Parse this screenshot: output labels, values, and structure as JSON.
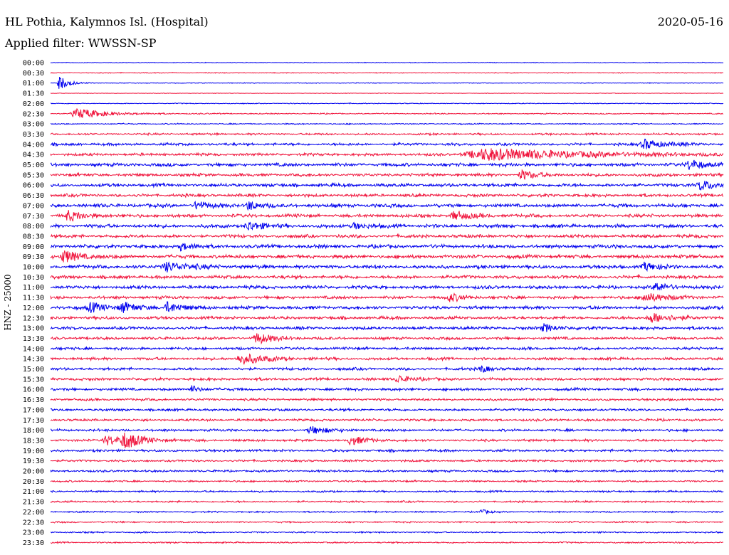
{
  "station_title": "HL Pothia, Kalymnos Isl. (Hospital)",
  "date": "2020-05-16",
  "filter_label": "Applied filter: WWSSN-SP",
  "chart_data": {
    "type": "line",
    "title": "HL Pothia, Kalymnos Isl. (Hospital)",
    "ylabel": "HNZ - 25000",
    "xlabel": "",
    "trace_colors": [
      "#0000ee",
      "#f0143c"
    ],
    "row_labels": [
      "00:00",
      "00:30",
      "01:00",
      "01:30",
      "02:00",
      "02:30",
      "03:00",
      "03:30",
      "04:00",
      "04:30",
      "05:00",
      "05:30",
      "06:00",
      "06:30",
      "07:00",
      "07:30",
      "08:00",
      "08:30",
      "09:00",
      "09:30",
      "10:00",
      "10:30",
      "11:00",
      "11:30",
      "12:00",
      "12:30",
      "13:00",
      "13:30",
      "14:00",
      "14:30",
      "15:00",
      "15:30",
      "16:00",
      "16:30",
      "17:00",
      "17:30",
      "18:00",
      "18:30",
      "19:00",
      "19:30",
      "20:00",
      "20:30",
      "21:00",
      "21:30",
      "22:00",
      "22:30",
      "23:00",
      "23:30"
    ],
    "noise_level": [
      0.12,
      0.15,
      0.12,
      0.08,
      0.15,
      0.2,
      0.2,
      0.35,
      0.45,
      0.45,
      0.55,
      0.5,
      0.55,
      0.5,
      0.6,
      0.55,
      0.6,
      0.55,
      0.6,
      0.6,
      0.6,
      0.55,
      0.55,
      0.5,
      0.55,
      0.5,
      0.5,
      0.45,
      0.45,
      0.45,
      0.45,
      0.45,
      0.45,
      0.4,
      0.4,
      0.4,
      0.4,
      0.4,
      0.4,
      0.35,
      0.35,
      0.3,
      0.3,
      0.3,
      0.25,
      0.25,
      0.25,
      0.25
    ],
    "events": [
      {
        "row": 2,
        "time_min": 0.4,
        "amp": 3.2,
        "dur_min": 0.8
      },
      {
        "row": 5,
        "time_min": 1.2,
        "amp": 2.2,
        "dur_min": 2.5
      },
      {
        "row": 8,
        "time_min": 26.5,
        "amp": 2.0,
        "dur_min": 1.8
      },
      {
        "row": 9,
        "time_min": 19.5,
        "amp": 2.4,
        "dur_min": 9.0
      },
      {
        "row": 10,
        "time_min": 28.5,
        "amp": 2.0,
        "dur_min": 1.5
      },
      {
        "row": 11,
        "time_min": 21.0,
        "amp": 2.0,
        "dur_min": 1.2
      },
      {
        "row": 12,
        "time_min": 29.0,
        "amp": 2.2,
        "dur_min": 1.5
      },
      {
        "row": 14,
        "time_min": 6.5,
        "amp": 1.8,
        "dur_min": 1.0
      },
      {
        "row": 14,
        "time_min": 8.8,
        "amp": 2.0,
        "dur_min": 1.0
      },
      {
        "row": 15,
        "time_min": 0.8,
        "amp": 2.0,
        "dur_min": 1.5
      },
      {
        "row": 15,
        "time_min": 18.0,
        "amp": 1.8,
        "dur_min": 1.5
      },
      {
        "row": 16,
        "time_min": 8.8,
        "amp": 2.0,
        "dur_min": 1.2
      },
      {
        "row": 16,
        "time_min": 13.5,
        "amp": 1.4,
        "dur_min": 1.0
      },
      {
        "row": 18,
        "time_min": 5.8,
        "amp": 1.6,
        "dur_min": 1.0
      },
      {
        "row": 19,
        "time_min": 0.6,
        "amp": 2.5,
        "dur_min": 1.5
      },
      {
        "row": 20,
        "time_min": 5.2,
        "amp": 2.0,
        "dur_min": 2.0
      },
      {
        "row": 20,
        "time_min": 26.5,
        "amp": 1.6,
        "dur_min": 1.2
      },
      {
        "row": 22,
        "time_min": 27.0,
        "amp": 1.8,
        "dur_min": 1.2
      },
      {
        "row": 23,
        "time_min": 17.8,
        "amp": 1.6,
        "dur_min": 1.2
      },
      {
        "row": 23,
        "time_min": 26.5,
        "amp": 2.0,
        "dur_min": 2.0
      },
      {
        "row": 24,
        "time_min": 1.8,
        "amp": 2.0,
        "dur_min": 1.5
      },
      {
        "row": 24,
        "time_min": 3.2,
        "amp": 2.0,
        "dur_min": 1.2
      },
      {
        "row": 24,
        "time_min": 5.2,
        "amp": 2.2,
        "dur_min": 1.2
      },
      {
        "row": 25,
        "time_min": 26.8,
        "amp": 2.0,
        "dur_min": 1.8
      },
      {
        "row": 26,
        "time_min": 22.0,
        "amp": 1.6,
        "dur_min": 1.2
      },
      {
        "row": 27,
        "time_min": 9.2,
        "amp": 2.2,
        "dur_min": 1.5
      },
      {
        "row": 29,
        "time_min": 8.5,
        "amp": 2.4,
        "dur_min": 2.0
      },
      {
        "row": 30,
        "time_min": 19.2,
        "amp": 1.6,
        "dur_min": 0.8
      },
      {
        "row": 31,
        "time_min": 15.5,
        "amp": 1.6,
        "dur_min": 1.2
      },
      {
        "row": 32,
        "time_min": 6.3,
        "amp": 1.4,
        "dur_min": 0.8
      },
      {
        "row": 36,
        "time_min": 11.6,
        "amp": 1.6,
        "dur_min": 1.5
      },
      {
        "row": 37,
        "time_min": 2.5,
        "amp": 2.0,
        "dur_min": 1.8
      },
      {
        "row": 37,
        "time_min": 3.3,
        "amp": 3.0,
        "dur_min": 1.5
      },
      {
        "row": 37,
        "time_min": 13.4,
        "amp": 2.0,
        "dur_min": 1.2
      },
      {
        "row": 44,
        "time_min": 19.2,
        "amp": 1.0,
        "dur_min": 0.6
      }
    ]
  }
}
